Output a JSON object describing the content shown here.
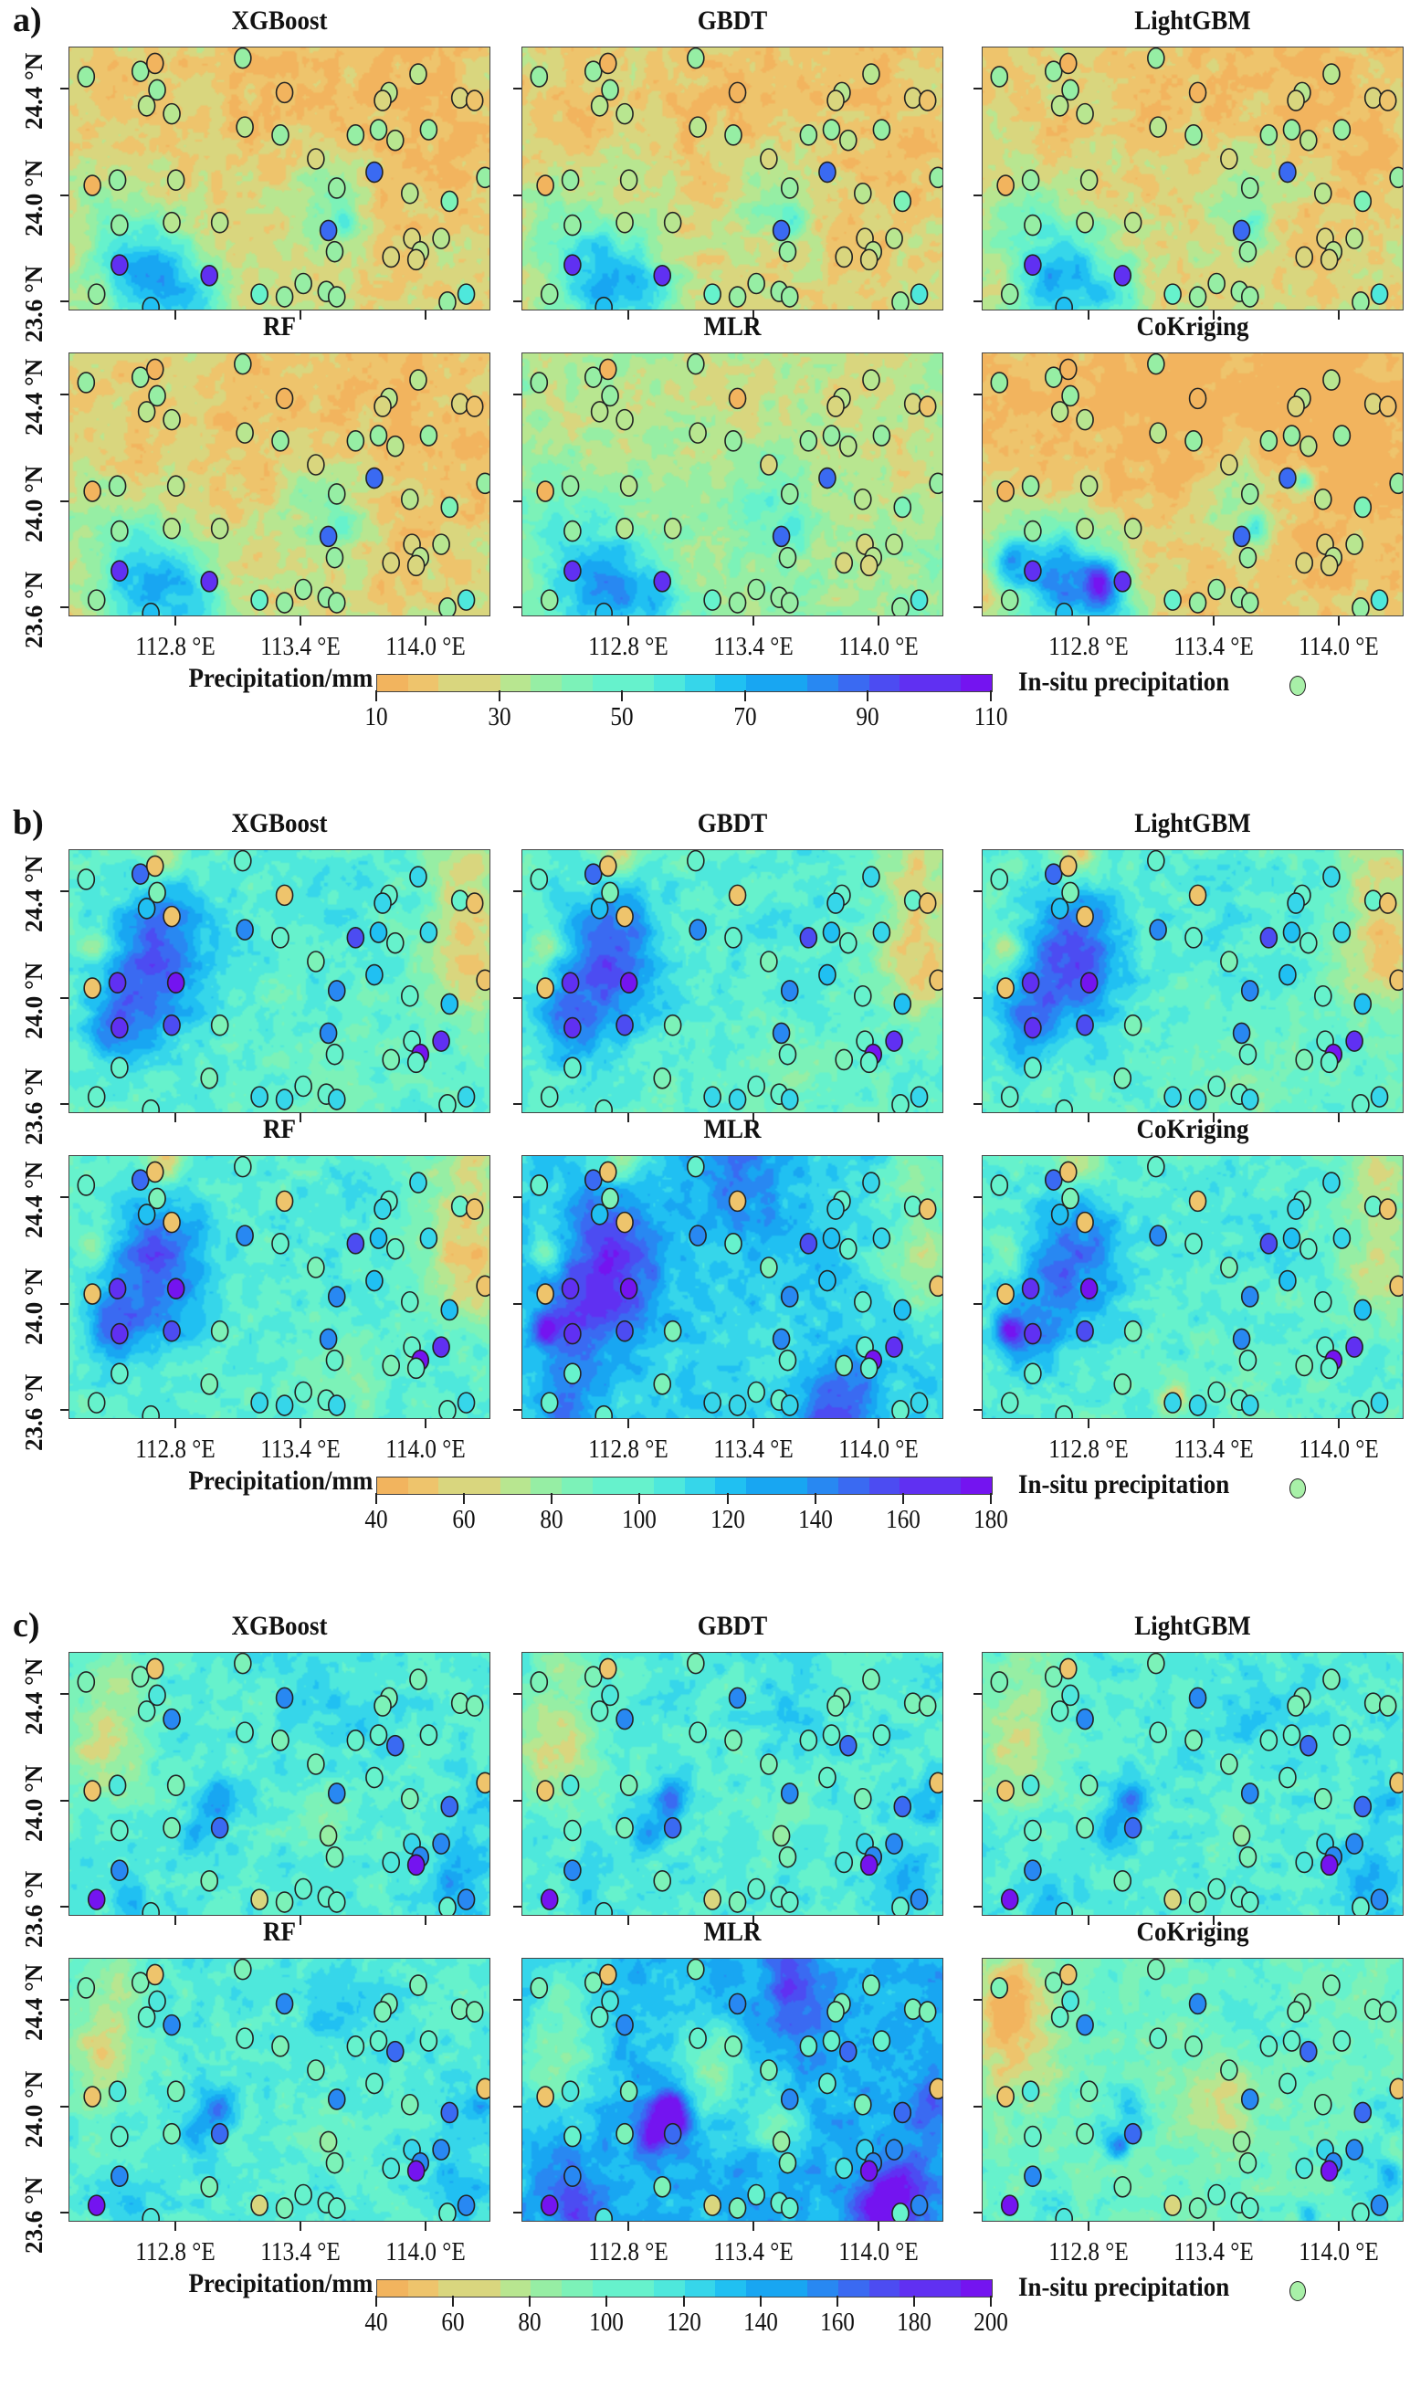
{
  "figure": {
    "extent": {
      "lon": [
        112.29,
        114.31
      ],
      "lat": [
        23.565,
        24.56
      ]
    },
    "x_ticks": [
      "112.8 °E",
      "113.4 °E",
      "114.0 °E"
    ],
    "x_tick_values": [
      112.8,
      113.4,
      114.0
    ],
    "y_ticks": [
      "24.4 °N",
      "24.0 °N",
      "23.6 °N"
    ],
    "y_tick_values": [
      24.4,
      24.0,
      23.6
    ],
    "colorbar_title": "Precipitation/mm",
    "station_legend": "In-situ precipitation",
    "colormap": [
      "#f2b45e",
      "#eec46c",
      "#d9d67e",
      "#b8e690",
      "#96eea4",
      "#7cf2b8",
      "#66f2cc",
      "#4ee8dc",
      "#36d6ea",
      "#20c0f2",
      "#18a6f2",
      "#2888f2",
      "#3a6af2",
      "#4c4cf2",
      "#6030f2",
      "#7414f0"
    ],
    "models": [
      "XGBoost",
      "GBDT",
      "LightGBM",
      "RF",
      "MLR",
      "CoKriging"
    ]
  },
  "sections": [
    {
      "label": "a)",
      "range": [
        10,
        110
      ],
      "ticks": [
        "10",
        "30",
        "50",
        "70",
        "90",
        "110"
      ]
    },
    {
      "label": "b)",
      "range": [
        40,
        180
      ],
      "ticks": [
        "40",
        "60",
        "80",
        "100",
        "120",
        "140",
        "160",
        "180"
      ]
    },
    {
      "label": "c)",
      "range": [
        40,
        200
      ],
      "ticks": [
        "40",
        "60",
        "80",
        "100",
        "120",
        "140",
        "160",
        "180",
        "200"
      ]
    }
  ],
  "chart_data": {
    "type": "heatmap",
    "description_units": "station precipitation in mm (approximate, read from marker colour)",
    "stations": [
      {
        "lon": 112.37,
        "lat": 24.45,
        "a": 35,
        "b": 95,
        "c": 95
      },
      {
        "lon": 112.63,
        "lat": 24.47,
        "a": 38,
        "b": 150,
        "c": 95
      },
      {
        "lon": 112.7,
        "lat": 24.5,
        "a": 15,
        "b": 50,
        "c": 50
      },
      {
        "lon": 112.71,
        "lat": 24.4,
        "a": 35,
        "b": 90,
        "c": 110
      },
      {
        "lon": 112.66,
        "lat": 24.34,
        "a": 30,
        "b": 125,
        "c": 100
      },
      {
        "lon": 112.78,
        "lat": 24.31,
        "a": 30,
        "b": 50,
        "c": 150
      },
      {
        "lon": 113.12,
        "lat": 24.52,
        "a": 35,
        "b": 95,
        "c": 95
      },
      {
        "lon": 113.32,
        "lat": 24.39,
        "a": 15,
        "b": 50,
        "c": 150
      },
      {
        "lon": 113.13,
        "lat": 24.26,
        "a": 30,
        "b": 140,
        "c": 100
      },
      {
        "lon": 113.3,
        "lat": 24.23,
        "a": 35,
        "b": 95,
        "c": 95
      },
      {
        "lon": 113.47,
        "lat": 24.14,
        "a": 25,
        "b": 85,
        "c": 95
      },
      {
        "lon": 113.66,
        "lat": 24.23,
        "a": 35,
        "b": 160,
        "c": 100
      },
      {
        "lon": 113.77,
        "lat": 24.25,
        "a": 35,
        "b": 125,
        "c": 100
      },
      {
        "lon": 113.85,
        "lat": 24.21,
        "a": 30,
        "b": 95,
        "c": 160
      },
      {
        "lon": 114.01,
        "lat": 24.25,
        "a": 35,
        "b": 110,
        "c": 100
      },
      {
        "lon": 113.96,
        "lat": 24.46,
        "a": 30,
        "b": 110,
        "c": 95
      },
      {
        "lon": 113.82,
        "lat": 24.39,
        "a": 30,
        "b": 95,
        "c": 95
      },
      {
        "lon": 113.79,
        "lat": 24.36,
        "a": 28,
        "b": 110,
        "c": 95
      },
      {
        "lon": 114.16,
        "lat": 24.37,
        "a": 25,
        "b": 95,
        "c": 95
      },
      {
        "lon": 114.23,
        "lat": 24.36,
        "a": 20,
        "b": 50,
        "c": 95
      },
      {
        "lon": 113.75,
        "lat": 24.09,
        "a": 85,
        "b": 125,
        "c": 100
      },
      {
        "lon": 114.28,
        "lat": 24.07,
        "a": 35,
        "b": 50,
        "c": 50
      },
      {
        "lon": 112.4,
        "lat": 24.04,
        "a": 15,
        "b": 50,
        "c": 50
      },
      {
        "lon": 112.52,
        "lat": 24.06,
        "a": 40,
        "b": 170,
        "c": 115
      },
      {
        "lon": 112.8,
        "lat": 24.06,
        "a": 30,
        "b": 175,
        "c": 95
      },
      {
        "lon": 113.57,
        "lat": 24.03,
        "a": 40,
        "b": 140,
        "c": 150
      },
      {
        "lon": 113.92,
        "lat": 24.01,
        "a": 30,
        "b": 100,
        "c": 90
      },
      {
        "lon": 114.11,
        "lat": 23.98,
        "a": 45,
        "b": 125,
        "c": 160
      },
      {
        "lon": 112.53,
        "lat": 23.89,
        "a": 40,
        "b": 170,
        "c": 100
      },
      {
        "lon": 112.78,
        "lat": 23.9,
        "a": 30,
        "b": 160,
        "c": 95
      },
      {
        "lon": 113.01,
        "lat": 23.9,
        "a": 30,
        "b": 90,
        "c": 165
      },
      {
        "lon": 113.53,
        "lat": 23.87,
        "a": 85,
        "b": 140,
        "c": 85
      },
      {
        "lon": 113.56,
        "lat": 23.79,
        "a": 40,
        "b": 100,
        "c": 95
      },
      {
        "lon": 113.93,
        "lat": 23.84,
        "a": 28,
        "b": 100,
        "c": 125
      },
      {
        "lon": 114.07,
        "lat": 23.84,
        "a": 30,
        "b": 170,
        "c": 150
      },
      {
        "lon": 113.97,
        "lat": 23.79,
        "a": 30,
        "b": 175,
        "c": 150
      },
      {
        "lon": 113.83,
        "lat": 23.77,
        "a": 28,
        "b": 85,
        "c": 115
      },
      {
        "lon": 113.95,
        "lat": 23.76,
        "a": 28,
        "b": 95,
        "c": 190
      },
      {
        "lon": 112.53,
        "lat": 23.74,
        "a": 100,
        "b": 100,
        "c": 150
      },
      {
        "lon": 112.96,
        "lat": 23.7,
        "a": 100,
        "b": 85,
        "c": 95
      },
      {
        "lon": 112.42,
        "lat": 23.63,
        "a": 35,
        "b": 100,
        "c": 195
      },
      {
        "lon": 112.68,
        "lat": 23.58,
        "a": 70,
        "b": 100,
        "c": 110
      },
      {
        "lon": 113.41,
        "lat": 23.67,
        "a": 40,
        "b": 100,
        "c": 100
      },
      {
        "lon": 113.2,
        "lat": 23.63,
        "a": 50,
        "b": 110,
        "c": 60
      },
      {
        "lon": 113.32,
        "lat": 23.62,
        "a": 40,
        "b": 110,
        "c": 95
      },
      {
        "lon": 113.52,
        "lat": 23.64,
        "a": 40,
        "b": 100,
        "c": 100
      },
      {
        "lon": 113.57,
        "lat": 23.62,
        "a": 40,
        "b": 110,
        "c": 100
      },
      {
        "lon": 114.1,
        "lat": 23.6,
        "a": 35,
        "b": 95,
        "c": 100
      },
      {
        "lon": 114.19,
        "lat": 23.63,
        "a": 55,
        "b": 110,
        "c": 155
      }
    ]
  }
}
